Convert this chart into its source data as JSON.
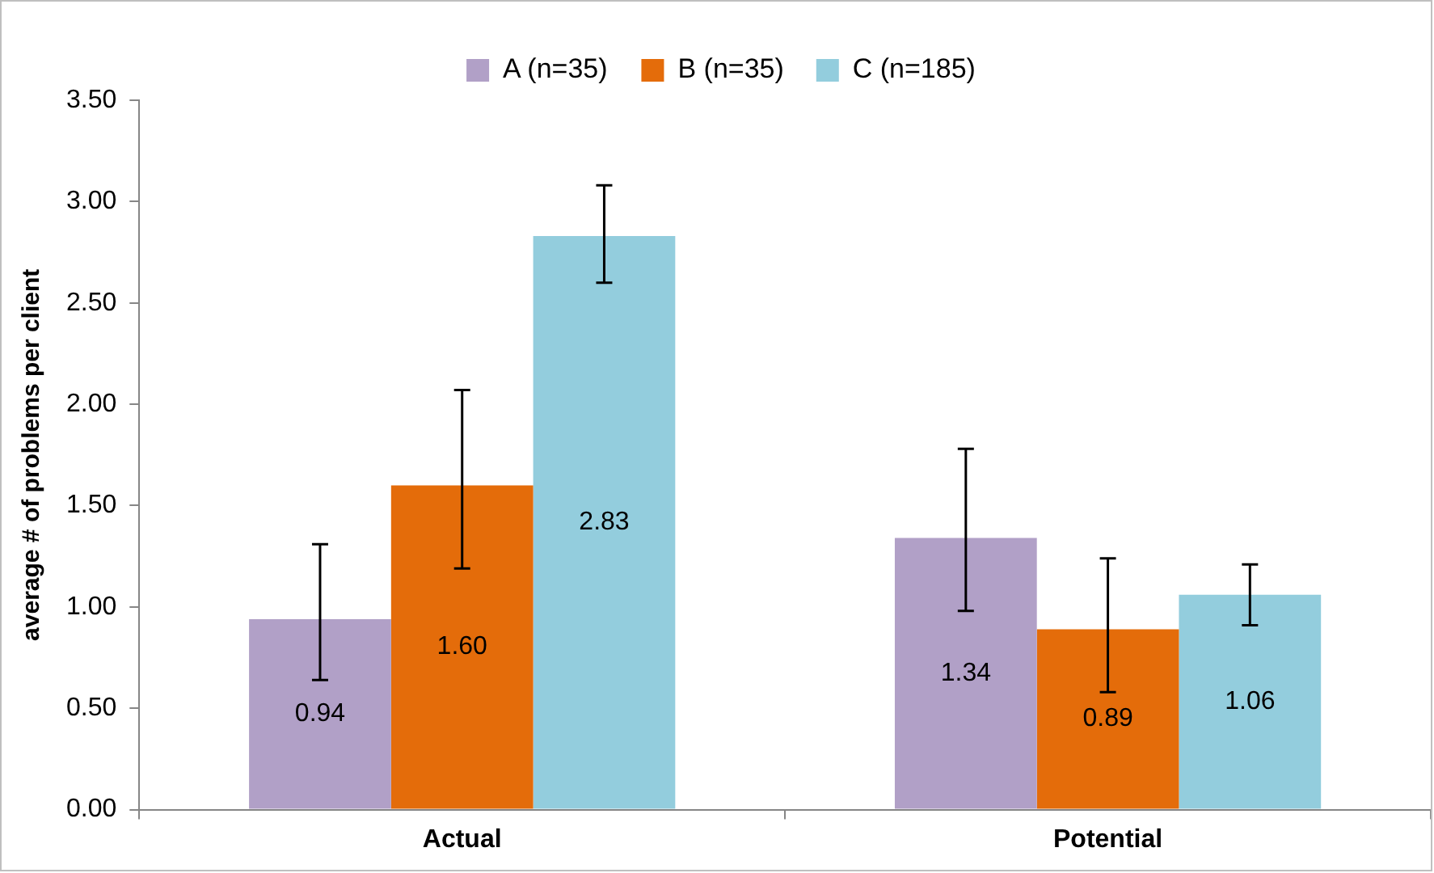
{
  "chart_data": {
    "type": "bar",
    "ylabel": "average # of problems per client",
    "categories": [
      "Actual",
      "Potential"
    ],
    "series": [
      {
        "name": "A (n=35)",
        "color": "#b1a0c7",
        "values": [
          0.94,
          1.34
        ],
        "value_labels": [
          "0.94",
          "1.34"
        ],
        "errors": [
          [
            0.64,
            1.31
          ],
          [
            0.98,
            1.78
          ]
        ]
      },
      {
        "name": "B (n=35)",
        "color": "#e46c0a",
        "values": [
          1.6,
          0.89
        ],
        "value_labels": [
          "1.60",
          "0.89"
        ],
        "errors": [
          [
            1.19,
            2.07
          ],
          [
            0.58,
            1.24
          ]
        ]
      },
      {
        "name": "C (n=185)",
        "color": "#93cddd",
        "values": [
          2.83,
          1.06
        ],
        "value_labels": [
          "2.83",
          "1.06"
        ],
        "errors": [
          [
            2.6,
            3.08
          ],
          [
            0.91,
            1.21
          ]
        ]
      }
    ],
    "ylim": [
      0,
      3.5
    ],
    "yticks": [
      {
        "value": 0,
        "label": "0.00"
      },
      {
        "value": 0.5,
        "label": "0.50"
      },
      {
        "value": 1,
        "label": "1.00"
      },
      {
        "value": 1.5,
        "label": "1.50"
      },
      {
        "value": 2,
        "label": "2.00"
      },
      {
        "value": 2.5,
        "label": "2.50"
      },
      {
        "value": 3,
        "label": "3.00"
      },
      {
        "value": 3.5,
        "label": "3.50"
      }
    ],
    "grid": false,
    "legend": "top"
  }
}
